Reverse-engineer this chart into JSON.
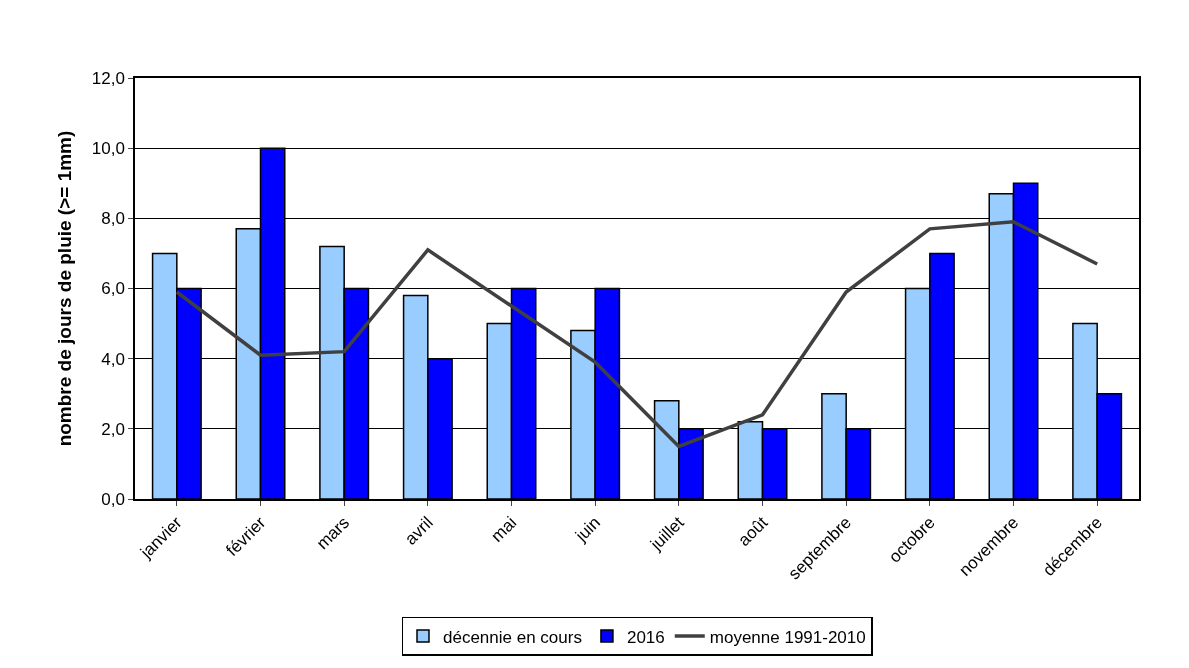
{
  "chart_data": {
    "type": "bar",
    "ylabel": "nombre de jours de pluie (>= 1mm)",
    "categories": [
      "janvier",
      "février",
      "mars",
      "avril",
      "mai",
      "juin",
      "juillet",
      "août",
      "septembre",
      "octobre",
      "novembre",
      "décembre"
    ],
    "series": [
      {
        "name": "décennie en cours",
        "color": "#99ccff",
        "values": [
          7.0,
          7.7,
          7.2,
          5.8,
          5.0,
          4.8,
          2.8,
          2.2,
          3.0,
          6.0,
          8.7,
          5.0
        ]
      },
      {
        "name": "2016",
        "color": "#0000ff",
        "values": [
          6,
          10,
          6,
          4,
          6,
          6,
          2,
          2,
          2,
          7,
          9,
          3
        ]
      },
      {
        "name": "moyenne 1991-2010",
        "type": "line",
        "color": "#404040",
        "line_style": "solid",
        "values": [
          5.9,
          4.1,
          4.2,
          7.1,
          5.5,
          3.9,
          1.5,
          2.4,
          5.9,
          7.7,
          7.9,
          6.7
        ]
      }
    ],
    "ylim": [
      0,
      12
    ],
    "yticks": [
      {
        "value": 0,
        "label": "0,0"
      },
      {
        "value": 2,
        "label": "2,0"
      },
      {
        "value": 4,
        "label": "4,0"
      },
      {
        "value": 6,
        "label": "6,0"
      },
      {
        "value": 8,
        "label": "8,0"
      },
      {
        "value": 10,
        "label": "10,0"
      },
      {
        "value": 12,
        "label": "12,0"
      }
    ],
    "grid": "y",
    "legend": "bottom",
    "marker": "none"
  }
}
